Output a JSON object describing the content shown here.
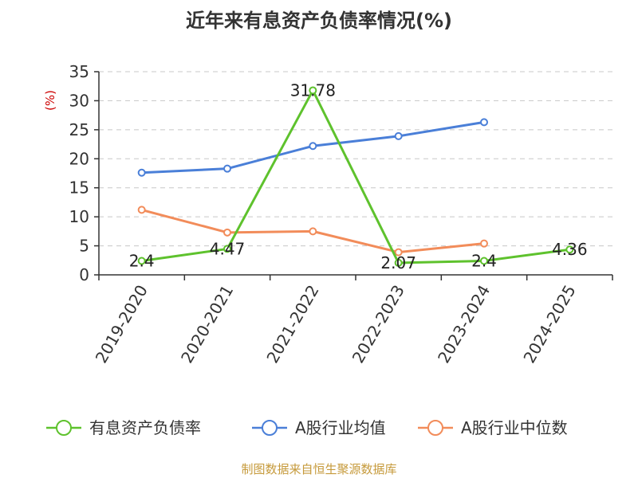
{
  "title": "近年来有息资产负债率情况(%)",
  "source": "制图数据来自恒生聚源数据库",
  "chart_data": {
    "type": "line",
    "title": "近年来有息资产负债率情况(%)",
    "ylabel": "(%)",
    "ylim": [
      0,
      35
    ],
    "yticks": [
      0,
      5,
      10,
      15,
      20,
      25,
      30,
      35
    ],
    "grid": true,
    "legend_position": "bottom",
    "categories": [
      "2019-2020",
      "2020-2021",
      "2021-2022",
      "2022-2023",
      "2023-2024",
      "2024-2025"
    ],
    "series": [
      {
        "name": "有息资产负债率",
        "color": "#5ec22d",
        "values": [
          2.4,
          4.47,
          31.78,
          2.07,
          2.4,
          4.36
        ],
        "labels": [
          "2.4",
          "4.47",
          "31.78",
          "2.07",
          "2.4",
          "4.36"
        ]
      },
      {
        "name": "A股行业均值",
        "color": "#4a7fd8",
        "values": [
          17.6,
          18.3,
          22.2,
          23.9,
          26.3,
          null
        ]
      },
      {
        "name": "A股行业中位数",
        "color": "#f28c5a",
        "values": [
          11.2,
          7.3,
          7.5,
          3.9,
          5.4,
          null
        ]
      }
    ]
  }
}
